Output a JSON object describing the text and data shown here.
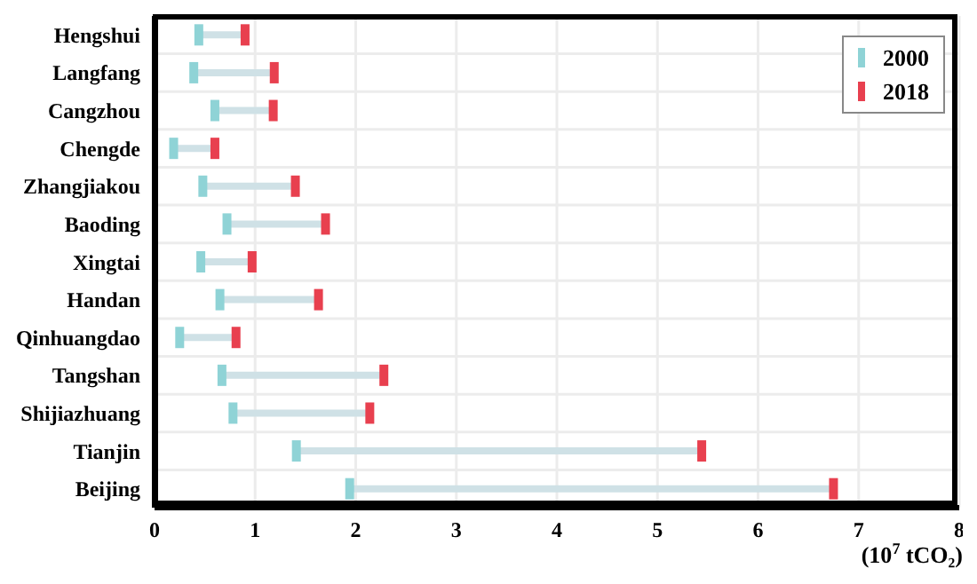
{
  "chart_data": {
    "type": "scatter",
    "orientation": "horizontal",
    "xlabel": "(10$^{7}$ tCO₂)",
    "categories": [
      "Hengshui",
      "Langfang",
      "Cangzhou",
      "Chengde",
      "Zhangjiakou",
      "Baoding",
      "Xingtai",
      "Handan",
      "Qinhuangdao",
      "Tangshan",
      "Shijiazhuang",
      "Tianjin",
      "Beijing"
    ],
    "series": [
      {
        "name": "2000",
        "color": "#8fd3d6",
        "values": [
          0.44,
          0.39,
          0.6,
          0.19,
          0.48,
          0.72,
          0.46,
          0.65,
          0.25,
          0.67,
          0.78,
          1.41,
          1.94
        ]
      },
      {
        "name": "2018",
        "color": "#e8404f",
        "values": [
          0.9,
          1.19,
          1.18,
          0.6,
          1.4,
          1.7,
          0.97,
          1.63,
          0.81,
          2.28,
          2.14,
          5.44,
          6.75
        ]
      }
    ],
    "xlim": [
      0,
      8
    ],
    "xticks": [
      0,
      1,
      2,
      3,
      4,
      5,
      6,
      7,
      8
    ],
    "grid": true,
    "legend": "top right",
    "marker": "square"
  }
}
